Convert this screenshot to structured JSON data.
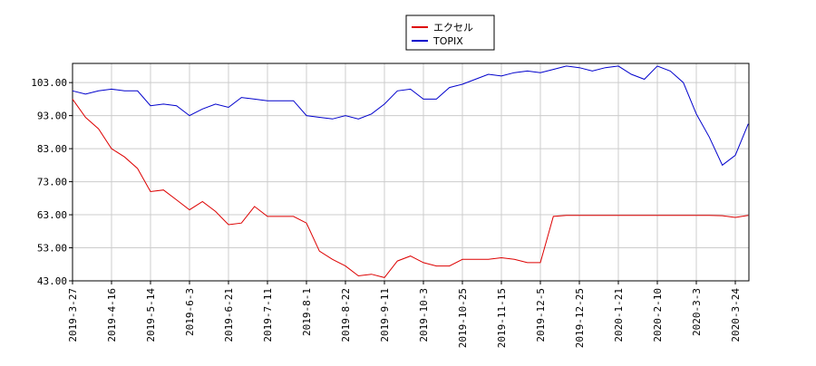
{
  "chart_data": {
    "type": "line",
    "categories": [
      "2019-3-27",
      null,
      null,
      "2019-4-16",
      null,
      null,
      "2019-5-14",
      null,
      null,
      "2019-6-3",
      null,
      null,
      "2019-6-21",
      null,
      null,
      "2019-7-11",
      null,
      null,
      "2019-8-1",
      null,
      null,
      "2019-8-22",
      null,
      null,
      "2019-9-11",
      null,
      null,
      "2019-10-3",
      null,
      null,
      "2019-10-25",
      null,
      null,
      "2019-11-15",
      null,
      null,
      "2019-12-5",
      null,
      null,
      "2019-12-25",
      null,
      null,
      "2020-1-21",
      null,
      null,
      "2020-2-10",
      null,
      null,
      "2020-3-3",
      null,
      null,
      "2020-3-24",
      null
    ],
    "series": [
      {
        "name": "エクセル",
        "color": "#dd0000",
        "values": [
          98,
          92.5,
          89,
          83,
          80.5,
          77,
          70,
          70.5,
          67.5,
          64.5,
          67,
          64,
          60,
          60.5,
          65.5,
          62.5,
          62.5,
          62.5,
          60.5,
          52,
          49.5,
          47.5,
          44.5,
          45,
          44,
          49,
          50.5,
          48.5,
          47.5,
          47.5,
          49.5,
          49.5,
          49.5,
          50,
          49.5,
          48.5,
          48.5,
          62.5,
          62.8,
          62.8,
          62.8,
          62.8,
          62.8,
          62.8,
          62.8,
          62.8,
          62.8,
          62.8,
          62.8,
          62.8,
          62.7,
          62.2,
          62.8
        ]
      },
      {
        "name": "TOPIX",
        "color": "#0000cc",
        "values": [
          100.5,
          99.5,
          100.5,
          101,
          100.5,
          100.5,
          96,
          96.5,
          96,
          93,
          95,
          96.5,
          95.5,
          98.5,
          98,
          97.5,
          97.5,
          97.5,
          93,
          92.5,
          92,
          93,
          92,
          93.5,
          96.5,
          100.5,
          101,
          98,
          98,
          101.5,
          102.5,
          104,
          105.5,
          105,
          106,
          106.5,
          106,
          107,
          108,
          107.5,
          106.5,
          107.5,
          108,
          105.5,
          104,
          108,
          106.5,
          103,
          93.5,
          86.5,
          78,
          81,
          90.5
        ]
      }
    ],
    "ylim": [
      43,
      108.8
    ],
    "yticks": [
      {
        "value": 43,
        "label": "43.00"
      },
      {
        "value": 53,
        "label": "53.00"
      },
      {
        "value": 63,
        "label": "63.00"
      },
      {
        "value": 73,
        "label": "73.00"
      },
      {
        "value": 83,
        "label": "83.00"
      },
      {
        "value": 93,
        "label": "93.00"
      },
      {
        "value": 103,
        "label": "103.00"
      }
    ],
    "grid": true,
    "legend": "top"
  }
}
